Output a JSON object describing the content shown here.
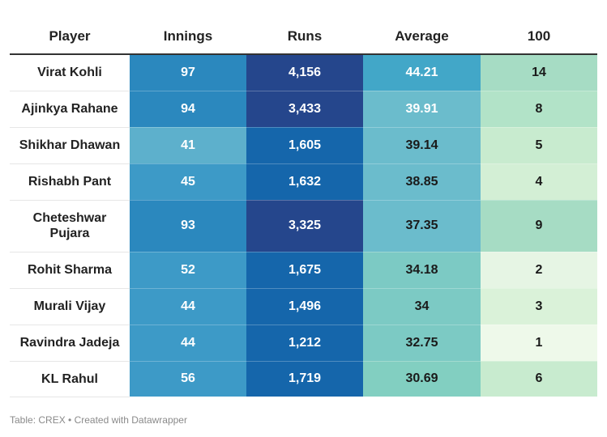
{
  "footer": "Table: CREX • Created with Datawrapper",
  "chart_data": {
    "type": "table",
    "columns": [
      "Player",
      "Innings",
      "Runs",
      "Average",
      "100"
    ],
    "rows": [
      {
        "player": "Virat Kohli",
        "innings": 97,
        "runs": "4,156",
        "average": "44.21",
        "hundreds": 14
      },
      {
        "player": "Ajinkya Rahane",
        "innings": 94,
        "runs": "3,433",
        "average": "39.91",
        "hundreds": 8
      },
      {
        "player": "Shikhar Dhawan",
        "innings": 41,
        "runs": "1,605",
        "average": "39.14",
        "hundreds": 5
      },
      {
        "player": "Rishabh Pant",
        "innings": 45,
        "runs": "1,632",
        "average": "38.85",
        "hundreds": 4
      },
      {
        "player": "Cheteshwar Pujara",
        "innings": 93,
        "runs": "3,325",
        "average": "37.35",
        "hundreds": 9
      },
      {
        "player": "Rohit Sharma",
        "innings": 52,
        "runs": "1,675",
        "average": "34.18",
        "hundreds": 2
      },
      {
        "player": "Murali Vijay",
        "innings": 44,
        "runs": "1,496",
        "average": "34",
        "hundreds": 3
      },
      {
        "player": "Ravindra Jadeja",
        "innings": 44,
        "runs": "1,212",
        "average": "32.75",
        "hundreds": 1
      },
      {
        "player": "KL Rahul",
        "innings": 56,
        "runs": "1,719",
        "average": "30.69",
        "hundreds": 6
      }
    ],
    "colors": {
      "innings": [
        "#2b88be",
        "#2b88be",
        "#5db0cc",
        "#3d9ac7",
        "#2b88be",
        "#3d9ac7",
        "#3d9ac7",
        "#3d9ac7",
        "#3d9ac7"
      ],
      "runs": [
        "#25468c",
        "#25468c",
        "#1566ab",
        "#1566ab",
        "#25468c",
        "#1566ab",
        "#1566ab",
        "#1566ab",
        "#1566ab"
      ],
      "average": [
        "#42a7c8",
        "#6bbccc",
        "#6bbccc",
        "#6bbccc",
        "#6bbccc",
        "#7ccac4",
        "#7ccac4",
        "#7ccac4",
        "#82cfc1"
      ],
      "hundreds": [
        "#a6dcc4",
        "#b2e3c8",
        "#c8ebcf",
        "#d3efd5",
        "#a6dcc4",
        "#e6f5e4",
        "#daf2d9",
        "#eef9ea",
        "#c8ebcf"
      ]
    },
    "text_colors": {
      "innings": "#ffffff",
      "runs": "#ffffff",
      "average": [
        "#ffffff",
        "#ffffff",
        "#1a1a1a",
        "#1a1a1a",
        "#1a1a1a",
        "#1a1a1a",
        "#1a1a1a",
        "#1a1a1a",
        "#1a1a1a"
      ],
      "hundreds": "#1a1a1a"
    }
  }
}
